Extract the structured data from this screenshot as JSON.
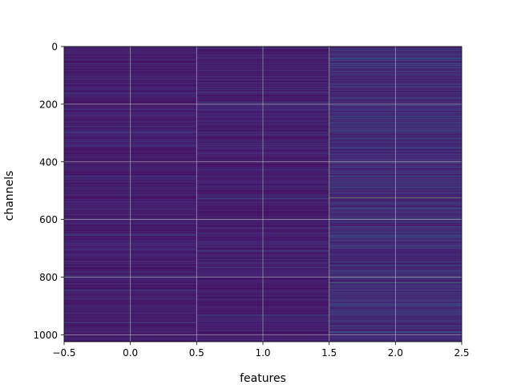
{
  "chart_data": {
    "type": "heatmap",
    "title": "",
    "xlabel": "features",
    "ylabel": "channels",
    "xlim": [
      -0.5,
      2.5
    ],
    "ylim": [
      1024,
      0
    ],
    "y_inverted": true,
    "grid": true,
    "colormap": "viridis",
    "columns": [
      0,
      1,
      2
    ],
    "rows": 1024,
    "x_ticks": [
      -0.5,
      0.0,
      0.5,
      1.0,
      1.5,
      2.0,
      2.5
    ],
    "x_tick_labels": [
      "−0.5",
      "0.0",
      "0.5",
      "1.0",
      "1.5",
      "2.0",
      "2.5"
    ],
    "y_ticks": [
      0,
      200,
      400,
      600,
      800,
      1000
    ],
    "y_tick_labels": [
      "0",
      "200",
      "400",
      "600",
      "800",
      "1000"
    ],
    "highlights": [
      {
        "column": 0,
        "channel": 490,
        "value": 0.35
      },
      {
        "column": 0,
        "channel": 800,
        "value": 0.3
      },
      {
        "column": 1,
        "channel": 40,
        "value": 0.3
      },
      {
        "column": 1,
        "channel": 160,
        "value": 0.3
      },
      {
        "column": 1,
        "channel": 487,
        "value": 0.35
      },
      {
        "column": 1,
        "channel": 527,
        "value": 0.4
      },
      {
        "column": 1,
        "channel": 600,
        "value": 0.3
      },
      {
        "column": 1,
        "channel": 800,
        "value": 0.3
      },
      {
        "column": 2,
        "channel": 40,
        "value": 0.45
      },
      {
        "column": 2,
        "channel": 100,
        "value": 0.4
      },
      {
        "column": 2,
        "channel": 160,
        "value": 0.45
      },
      {
        "column": 2,
        "channel": 177,
        "value": 0.5
      },
      {
        "column": 2,
        "channel": 230,
        "value": 0.4
      },
      {
        "column": 2,
        "channel": 320,
        "value": 0.35
      },
      {
        "column": 2,
        "channel": 450,
        "value": 0.45
      },
      {
        "column": 2,
        "channel": 490,
        "value": 0.5
      },
      {
        "column": 2,
        "channel": 525,
        "value": 0.95
      },
      {
        "column": 2,
        "channel": 560,
        "value": 0.5
      },
      {
        "column": 2,
        "channel": 600,
        "value": 0.45
      },
      {
        "column": 2,
        "channel": 660,
        "value": 0.4
      },
      {
        "column": 2,
        "channel": 700,
        "value": 0.45
      },
      {
        "column": 2,
        "channel": 760,
        "value": 0.4
      },
      {
        "column": 2,
        "channel": 800,
        "value": 0.55
      },
      {
        "column": 2,
        "channel": 820,
        "value": 0.7
      },
      {
        "column": 2,
        "channel": 900,
        "value": 0.4
      },
      {
        "column": 2,
        "channel": 970,
        "value": 0.5
      }
    ]
  }
}
